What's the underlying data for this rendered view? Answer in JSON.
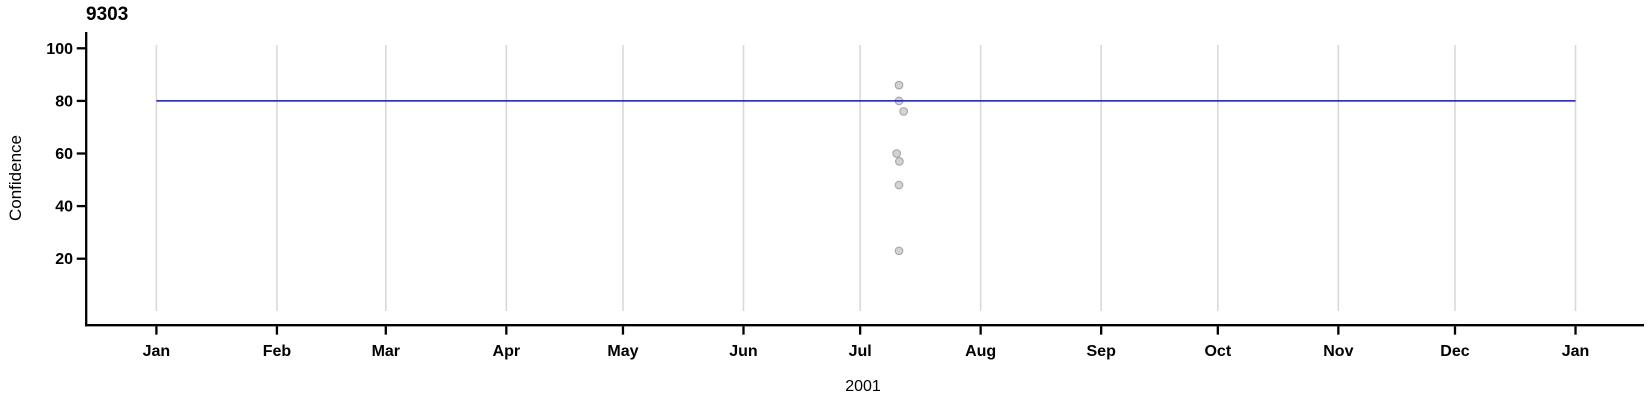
{
  "page": {
    "background": "#ffffff"
  },
  "chart_data": {
    "type": "scatter",
    "title": "9303",
    "xlabel": "2001",
    "ylabel": "Confidence",
    "ylim": [
      0,
      101
    ],
    "y_ticks": [
      20,
      40,
      60,
      80,
      100
    ],
    "x_tick_labels": [
      "Jan",
      "Feb",
      "Mar",
      "Apr",
      "May",
      "Jun",
      "Jul",
      "Aug",
      "Sep",
      "Oct",
      "Nov",
      "Dec",
      "Jan"
    ],
    "x_tick_day_offsets": [
      0,
      31,
      59,
      90,
      120,
      151,
      181,
      212,
      243,
      273,
      304,
      334,
      365
    ],
    "grid": {
      "orientation": "vertical",
      "color": "#d9d9d9"
    },
    "reference_line": {
      "value": 80,
      "start_day": 0,
      "end_day": 365,
      "color": "#1414cc"
    },
    "points": [
      {
        "date": "2001-07-11",
        "day_offset": 191.0,
        "value": 86
      },
      {
        "date": "2001-07-11",
        "day_offset": 191.0,
        "value": 80
      },
      {
        "date": "2001-07-12",
        "day_offset": 192.2,
        "value": 76
      },
      {
        "date": "2001-07-10",
        "day_offset": 190.4,
        "value": 60
      },
      {
        "date": "2001-07-11",
        "day_offset": 191.1,
        "value": 57
      },
      {
        "date": "2001-07-11",
        "day_offset": 191.0,
        "value": 48
      },
      {
        "date": "2001-07-11",
        "day_offset": 191.0,
        "value": 23
      }
    ],
    "point_style": {
      "fill": "#d3d3d3",
      "stroke": "#a6a6a6",
      "radius": 3.8
    },
    "axis_color": "#000000",
    "legend": "none"
  }
}
